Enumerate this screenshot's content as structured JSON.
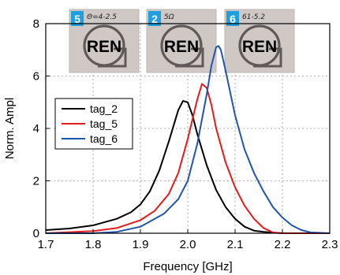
{
  "chart_data": {
    "type": "line",
    "title": "",
    "xlabel": "Frequency [GHz]",
    "ylabel": "Norm. Ampl",
    "xlim": [
      1.7,
      2.3
    ],
    "ylim": [
      0,
      8
    ],
    "xticks": [
      "1.7",
      "1.8",
      "1.9",
      "2.0",
      "2.1",
      "2.2",
      "2.3"
    ],
    "yticks": [
      "0",
      "2",
      "4",
      "6",
      "8"
    ],
    "grid": true,
    "legend_position": "center-left",
    "series": [
      {
        "name": "tag_2",
        "color": "#000000",
        "x": [
          1.7,
          1.75,
          1.8,
          1.85,
          1.88,
          1.9,
          1.92,
          1.94,
          1.96,
          1.98,
          1.99,
          2.0,
          2.01,
          2.02,
          2.04,
          2.06,
          2.08,
          2.1,
          2.12,
          2.14,
          2.16,
          2.2,
          2.3
        ],
        "y": [
          0.12,
          0.18,
          0.3,
          0.55,
          0.8,
          1.1,
          1.6,
          2.4,
          3.5,
          4.7,
          5.05,
          5.0,
          4.5,
          3.8,
          2.6,
          1.65,
          1.0,
          0.55,
          0.25,
          0.1,
          0.05,
          0.0,
          0.0
        ]
      },
      {
        "name": "tag_5",
        "color": "#e41a1c",
        "x": [
          1.7,
          1.8,
          1.85,
          1.9,
          1.93,
          1.96,
          1.98,
          2.0,
          2.02,
          2.03,
          2.04,
          2.05,
          2.06,
          2.08,
          2.1,
          2.12,
          2.14,
          2.16,
          2.18,
          2.2,
          2.3
        ],
        "y": [
          0.0,
          0.08,
          0.2,
          0.5,
          0.85,
          1.5,
          2.3,
          3.6,
          5.1,
          5.7,
          5.55,
          4.9,
          4.0,
          2.7,
          1.75,
          1.05,
          0.55,
          0.2,
          0.03,
          0.0,
          0.0
        ]
      },
      {
        "name": "tag_6",
        "color": "#2255aa",
        "x": [
          1.7,
          1.8,
          1.85,
          1.9,
          1.95,
          1.98,
          2.0,
          2.02,
          2.04,
          2.05,
          2.06,
          2.065,
          2.07,
          2.08,
          2.1,
          2.12,
          2.14,
          2.16,
          2.18,
          2.2,
          2.22,
          2.24,
          2.26,
          2.3
        ],
        "y": [
          0.0,
          0.0,
          0.05,
          0.25,
          0.75,
          1.3,
          2.0,
          3.4,
          5.3,
          6.4,
          7.1,
          7.15,
          7.0,
          6.2,
          4.5,
          3.2,
          2.3,
          1.6,
          1.0,
          0.6,
          0.3,
          0.12,
          0.03,
          0.0
        ]
      }
    ],
    "inset_photos": [
      {
        "label": "5",
        "note": "Θ=4-2.5",
        "logo_text": "REN"
      },
      {
        "label": "2",
        "note": "5Ω",
        "logo_text": "REN"
      },
      {
        "label": "6",
        "note": "61-5.2",
        "logo_text": "REN"
      }
    ],
    "photo_label_color": "#1ea0e0"
  }
}
